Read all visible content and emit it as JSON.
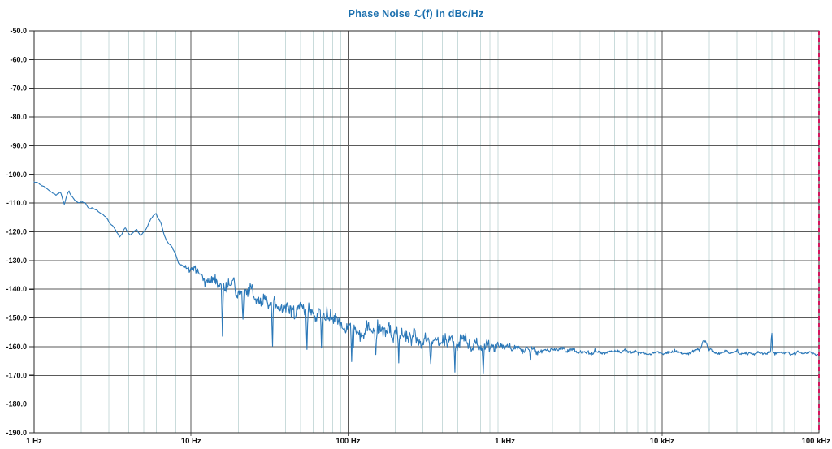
{
  "title": "Phase Noise ℒ(f) in dBc/Hz",
  "colors": {
    "title": "#1a6fae",
    "background": "#ffffff",
    "trace": "#2b78b8",
    "grid_major": "#5a5a5a",
    "grid_minor": "#c9dbdb",
    "frame": "#2a2a2a",
    "tick": "#2a2a2a",
    "label": "#111111",
    "limit_line": "#d6145f"
  },
  "chart_data": {
    "type": "line",
    "title": "Phase Noise ℒ(f) in dBc/Hz",
    "xscale": "log",
    "xlim_hz": [
      1,
      100000
    ],
    "ylim_dbc": [
      -190,
      -50
    ],
    "ytick_step_db": 10,
    "grid": "major+log-minor",
    "legend": "none",
    "x_ticks": [
      {
        "f": 1,
        "label": "1 Hz"
      },
      {
        "f": 10,
        "label": "10 Hz"
      },
      {
        "f": 100,
        "label": "100 Hz"
      },
      {
        "f": 1000,
        "label": "1 kHz"
      },
      {
        "f": 10000,
        "label": "10 kHz"
      },
      {
        "f": 100000,
        "label": "100 kHz"
      }
    ],
    "y_tick_labels": [
      "-50.0",
      "-60.0",
      "-70.0",
      "-80.0",
      "-90.0",
      "-100.0",
      "-110.0",
      "-120.0",
      "-130.0",
      "-140.0",
      "-150.0",
      "-160.0",
      "-170.0",
      "-180.0",
      "-190.0"
    ],
    "noise_floor_dbc_hz": -162,
    "limit_cursor": {
      "f": 100000,
      "style": "dashed",
      "color": "#d6145f"
    },
    "series": [
      {
        "name": "phase-noise-trace",
        "color": "#2b78b8",
        "trend_points": [
          [
            1.0,
            -102.4
          ],
          [
            1.12,
            -103.6
          ],
          [
            1.25,
            -105.5
          ],
          [
            1.38,
            -107.3
          ],
          [
            1.48,
            -106.3
          ],
          [
            1.56,
            -110.3
          ],
          [
            1.67,
            -105.2
          ],
          [
            1.8,
            -108.8
          ],
          [
            1.95,
            -110.2
          ],
          [
            2.12,
            -110.0
          ],
          [
            2.3,
            -112.2
          ],
          [
            2.54,
            -112.9
          ],
          [
            2.8,
            -114.8
          ],
          [
            3.16,
            -117.8
          ],
          [
            3.5,
            -121.5
          ],
          [
            3.8,
            -118.8
          ],
          [
            4.1,
            -121.2
          ],
          [
            4.5,
            -119.2
          ],
          [
            4.8,
            -121.8
          ],
          [
            5.2,
            -119.2
          ],
          [
            5.6,
            -115.5
          ],
          [
            6.0,
            -112.9
          ],
          [
            6.45,
            -117.5
          ],
          [
            7.0,
            -123.0
          ],
          [
            7.5,
            -126.0
          ],
          [
            8.3,
            -130.0
          ],
          [
            9.0,
            -132.3
          ],
          [
            10,
            -134.2
          ],
          [
            12.6,
            -136.3
          ],
          [
            15.8,
            -138.6
          ],
          [
            22,
            -141.3
          ],
          [
            32,
            -144.6
          ],
          [
            50,
            -147.6
          ],
          [
            80,
            -150.4
          ],
          [
            100,
            -152.0
          ],
          [
            158,
            -154.3
          ],
          [
            250,
            -156.2
          ],
          [
            400,
            -157.6
          ],
          [
            630,
            -159.3
          ],
          [
            1000,
            -160.6
          ],
          [
            2000,
            -161.4
          ],
          [
            4000,
            -161.8
          ],
          [
            10000,
            -162.0
          ],
          [
            31600,
            -162.1
          ],
          [
            100000,
            -162.1
          ]
        ],
        "noise_sigma_db": [
          [
            1,
            0.45
          ],
          [
            8,
            0.6
          ],
          [
            10,
            1.0
          ],
          [
            20,
            1.3
          ],
          [
            50,
            1.5
          ],
          [
            100,
            1.6
          ],
          [
            200,
            1.7
          ],
          [
            400,
            1.6
          ],
          [
            630,
            1.5
          ],
          [
            800,
            1.3
          ],
          [
            1000,
            0.8
          ],
          [
            2000,
            0.5
          ],
          [
            5000,
            0.4
          ],
          [
            10000,
            0.35
          ],
          [
            100000,
            0.35
          ]
        ],
        "down_spikes": [
          [
            15.8,
            -17
          ],
          [
            21.5,
            -11
          ],
          [
            33,
            -16
          ],
          [
            55,
            -14
          ],
          [
            68,
            -11
          ],
          [
            105,
            -11
          ],
          [
            150,
            -10
          ],
          [
            210,
            -10
          ],
          [
            337,
            -10
          ],
          [
            480,
            -9
          ],
          [
            730,
            -9.5
          ],
          [
            1450,
            -4
          ]
        ],
        "spurs": [
          {
            "f": 18500,
            "amp_db": 4.3,
            "width_dec": 0.018
          },
          {
            "f": 50000,
            "amp_db": 7.6,
            "width_dec": 0.003
          }
        ]
      }
    ]
  }
}
